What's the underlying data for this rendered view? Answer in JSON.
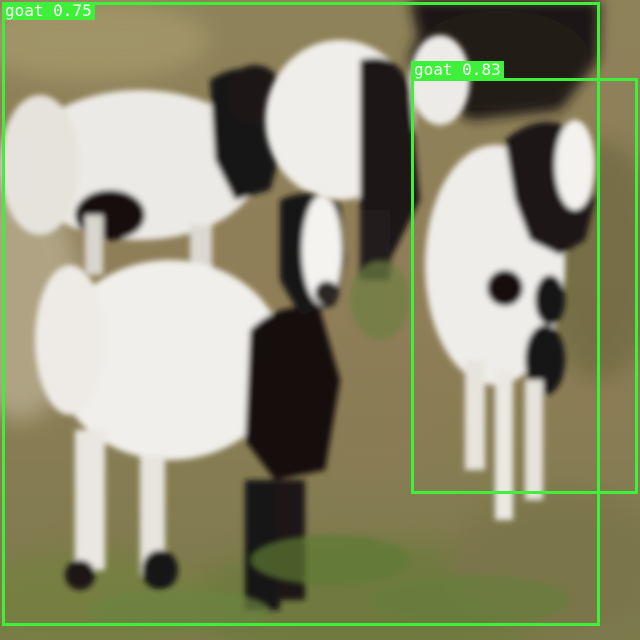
{
  "detections": [
    {
      "label": "goat",
      "score": "0.75",
      "color": "#3ef03a"
    },
    {
      "label": "goat",
      "score": "0.83",
      "color": "#3ef03a"
    }
  ]
}
